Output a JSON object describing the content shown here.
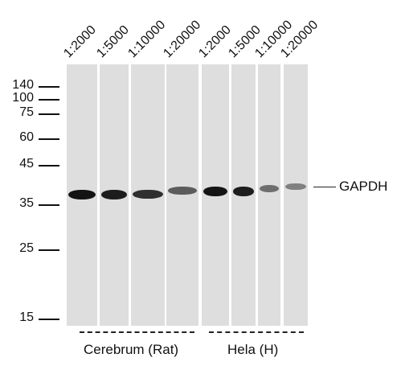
{
  "lanes": [
    {
      "dilution": "1:2000",
      "band_intensity": 1.0
    },
    {
      "dilution": "1:5000",
      "band_intensity": 0.95
    },
    {
      "dilution": "1:10000",
      "band_intensity": 0.85
    },
    {
      "dilution": "1:20000",
      "band_intensity": 0.6
    },
    {
      "dilution": "1:2000",
      "band_intensity": 1.0
    },
    {
      "dilution": "1:5000",
      "band_intensity": 0.95
    },
    {
      "dilution": "1:10000",
      "band_intensity": 0.5
    },
    {
      "dilution": "1:20000",
      "band_intensity": 0.4
    }
  ],
  "markers": [
    {
      "label": "140"
    },
    {
      "label": "100"
    },
    {
      "label": "75"
    },
    {
      "label": "60"
    },
    {
      "label": "45"
    },
    {
      "label": "35"
    },
    {
      "label": "25"
    },
    {
      "label": "15"
    }
  ],
  "groups": [
    {
      "label": "Cerebrum (Rat)"
    },
    {
      "label": "Hela (H)"
    }
  ],
  "protein_label": "GAPDH"
}
